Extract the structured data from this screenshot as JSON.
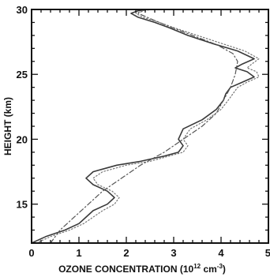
{
  "chart_data": {
    "type": "line",
    "title": "",
    "xlabel": {
      "main": "OZONE CONCENTRATION (10",
      "exp1": "12",
      "middle": " cm",
      "exp2": "-3",
      "end": ")"
    },
    "ylabel": "HEIGHT (km)",
    "xlim": [
      0,
      5
    ],
    "ylim": [
      12,
      30
    ],
    "xticks": [
      "0",
      "1",
      "2",
      "3",
      "4",
      "5"
    ],
    "yticks": [
      "15",
      "20",
      "25",
      "30"
    ],
    "grid": false,
    "legend": "none",
    "series": [
      {
        "style": "solid",
        "color": "#3a3a3a",
        "x": [
          0.0,
          0.3,
          0.7,
          1.0,
          1.15,
          1.3,
          1.6,
          1.75,
          1.6,
          1.3,
          1.15,
          1.3,
          1.8,
          2.3,
          2.8,
          3.1,
          3.2,
          3.1,
          3.2,
          3.6,
          3.9,
          4.05,
          4.1,
          4.2,
          4.45,
          4.7,
          4.55,
          4.3,
          4.45,
          4.7,
          4.35,
          3.8,
          3.3,
          2.9,
          2.6,
          2.25,
          2.1,
          2.25,
          2.45
        ],
        "y": [
          12.0,
          12.5,
          13.0,
          13.5,
          14.0,
          14.5,
          15.0,
          15.5,
          16.0,
          16.5,
          17.0,
          17.5,
          18.0,
          18.3,
          18.7,
          19.0,
          19.5,
          20.0,
          20.8,
          21.5,
          22.3,
          23.0,
          23.5,
          24.0,
          24.4,
          24.8,
          25.2,
          25.5,
          25.8,
          26.2,
          26.8,
          27.4,
          28.0,
          28.6,
          29.0,
          29.4,
          29.7,
          29.9,
          30.0
        ]
      },
      {
        "style": "dash-dot",
        "color": "#555555",
        "x": [
          0.4,
          0.6,
          0.9,
          1.2,
          1.5,
          1.9,
          2.3,
          2.8,
          3.2,
          3.6,
          3.9,
          4.05,
          4.2,
          4.3,
          4.35,
          4.25,
          3.9,
          3.4,
          2.9,
          2.5,
          2.25,
          2.4
        ],
        "y": [
          12.0,
          13.0,
          14.0,
          15.0,
          16.0,
          17.0,
          18.0,
          19.0,
          20.0,
          21.0,
          22.0,
          23.0,
          24.0,
          25.0,
          26.0,
          26.6,
          27.3,
          28.0,
          28.7,
          29.3,
          29.7,
          30.0
        ]
      },
      {
        "style": "dotted",
        "color": "#777777",
        "x": [
          0.1,
          0.4,
          0.8,
          1.1,
          1.3,
          1.5,
          1.75,
          1.85,
          1.7,
          1.4,
          1.3,
          1.5,
          2.0,
          2.5,
          2.9,
          3.2,
          3.3,
          3.2,
          3.35,
          3.7,
          4.0,
          4.15,
          4.25,
          4.35,
          4.55,
          4.8,
          4.75,
          4.55,
          4.65,
          4.8,
          4.5,
          4.0,
          3.5,
          3.0,
          2.7,
          2.35,
          2.2,
          2.35,
          2.55
        ],
        "y": [
          12.0,
          12.5,
          13.0,
          13.5,
          14.0,
          14.5,
          15.0,
          15.5,
          16.0,
          16.5,
          17.0,
          17.5,
          18.0,
          18.3,
          18.7,
          19.0,
          19.5,
          20.0,
          20.8,
          21.5,
          22.3,
          23.0,
          23.5,
          24.0,
          24.4,
          24.8,
          25.2,
          25.5,
          25.8,
          26.2,
          26.8,
          27.4,
          28.0,
          28.6,
          29.0,
          29.4,
          29.7,
          29.9,
          30.0
        ]
      }
    ]
  }
}
